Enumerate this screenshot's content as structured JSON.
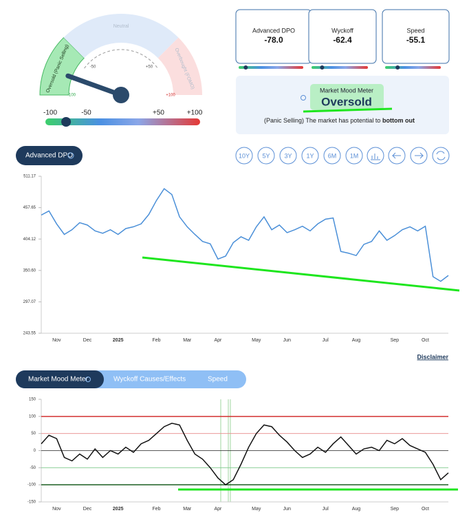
{
  "gauge": {
    "value": -78,
    "zones": [
      {
        "label": "Oversold (Panic Selling)",
        "color": "#a6e9b5"
      },
      {
        "label": "Neutral",
        "color": "#dfeaf9"
      },
      {
        "label": "Overbought (FOMO)",
        "color": "#fbdede"
      }
    ],
    "ticks": [
      -100,
      -50,
      {
        "value": 50,
        "label": "+50"
      },
      {
        "value": 100,
        "label": "+100"
      }
    ]
  },
  "cards": [
    {
      "title": "Advanced DPO",
      "value": -78,
      "value_label": "-78.0"
    },
    {
      "title": "Wyckoff",
      "value": -62.4
    },
    {
      "title": "Speed",
      "value": -55.1
    }
  ],
  "mood": {
    "title": "Market Mood Meter",
    "status": "Oversold",
    "note": "(Panic Selling) The market has potential to",
    "emphasis": "bottom out"
  },
  "chart_tab": "Advanced DPO",
  "periods": [
    "10Y",
    "5Y",
    "3Y",
    "1Y",
    "6M",
    "1M"
  ],
  "disclaimer": "Disclaimer",
  "tabs": [
    "Market Mood Meter",
    "Wyckoff Causes/Effects",
    "Speed"
  ],
  "chart_data": [
    {
      "type": "line",
      "categories": [
        null,
        null,
        "Nov",
        null,
        null,
        null,
        "Dec",
        null,
        null,
        null,
        "2025",
        null,
        null,
        null,
        null,
        "Feb",
        null,
        null,
        null,
        "Mar",
        null,
        null,
        null,
        "Apr",
        null,
        null,
        null,
        null,
        "May",
        null,
        null,
        null,
        "Jun",
        null,
        null,
        null,
        null,
        "Jul",
        null,
        null,
        null,
        "Aug",
        null,
        null,
        null,
        null,
        "Sep",
        null,
        null,
        null,
        "Oct",
        null,
        null,
        null
      ],
      "series": [
        {
          "color": "#4a8fd8",
          "values": [
            445,
            452,
            430,
            412,
            420,
            432,
            428,
            418,
            414,
            420,
            412,
            422,
            425,
            430,
            446,
            470,
            490,
            480,
            442,
            425,
            412,
            400,
            396,
            370,
            375,
            398,
            408,
            402,
            425,
            442,
            420,
            428,
            415,
            420,
            426,
            418,
            430,
            438,
            440,
            383,
            380,
            376,
            395,
            400,
            418,
            402,
            410,
            420,
            425,
            418,
            426,
            340,
            332,
            342
          ]
        }
      ],
      "ylim": [
        243.55,
        511.17
      ],
      "yticks": [
        243.55,
        297.07,
        {
          "value": 350.6,
          "label": "350.60"
        },
        404.12,
        457.65,
        511.17
      ]
    },
    {
      "type": "line",
      "categories": [
        null,
        null,
        "Nov",
        null,
        null,
        null,
        "Dec",
        null,
        null,
        null,
        "2025",
        null,
        null,
        null,
        null,
        "Feb",
        null,
        null,
        null,
        "Mar",
        null,
        null,
        null,
        "Apr",
        null,
        null,
        null,
        null,
        "May",
        null,
        null,
        null,
        "Jun",
        null,
        null,
        null,
        null,
        "Jul",
        null,
        null,
        null,
        "Aug",
        null,
        null,
        null,
        null,
        "Sep",
        null,
        null,
        null,
        "Oct",
        null,
        null,
        null
      ],
      "series": [
        {
          "color": "#111111",
          "values": [
            20,
            45,
            35,
            -20,
            -30,
            -10,
            -25,
            5,
            -20,
            0,
            -10,
            10,
            -5,
            20,
            30,
            50,
            70,
            80,
            75,
            30,
            -10,
            -25,
            -50,
            -80,
            -100,
            -85,
            -40,
            10,
            50,
            75,
            70,
            45,
            25,
            0,
            -20,
            -10,
            10,
            -5,
            20,
            40,
            15,
            -10,
            5,
            10,
            0,
            30,
            20,
            35,
            15,
            5,
            -5,
            -40,
            -85,
            -65
          ]
        }
      ],
      "ylim": [
        -150,
        150
      ],
      "yticks": [
        -150,
        -100,
        -50,
        0,
        50,
        100,
        150
      ],
      "reference_lines": [
        {
          "value": 100,
          "color": "#d32f2f"
        },
        {
          "value": 50,
          "color": "#e88a8a"
        },
        {
          "value": 0,
          "color": "#222222"
        },
        {
          "value": -50,
          "color": "#7cc88a"
        },
        {
          "value": -100,
          "color": "#1b5e20"
        }
      ]
    }
  ]
}
